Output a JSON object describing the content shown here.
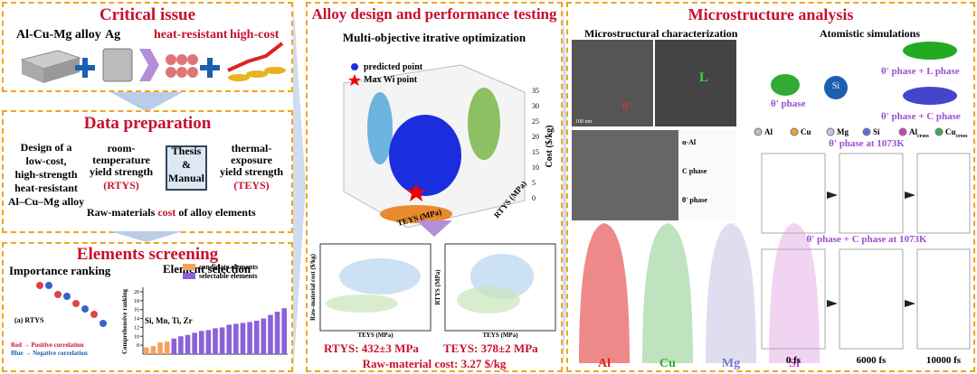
{
  "critical": {
    "title": "Critical issue",
    "alloy": "Al-Cu-Mg alloy",
    "ag": "Ag",
    "heat": "heat-resistant",
    "cost": "high-cost"
  },
  "data_prep": {
    "title": "Data preparation",
    "goal": [
      "Design of a",
      "low-cost,",
      "high-strength",
      "heat-resistant",
      "Al–Cu–Mg alloy"
    ],
    "room": [
      "room-",
      "temperature",
      "yield strength"
    ],
    "rtys": "(RTYS)",
    "thermal": [
      "thermal-",
      "exposure",
      "yield strength"
    ],
    "teys": "(TEYS)",
    "center": [
      "Thesis",
      "&",
      "Manual"
    ],
    "raw": "Raw-materials",
    "raw_cost": "cost",
    "raw_tail": "of alloy elements"
  },
  "screening": {
    "title": "Elements screening",
    "importance": "Importance ranking",
    "selection": "Element selection",
    "annotation": "Si, Mn, Ti, Zr",
    "rtys_tag": "(a) RTYS",
    "ylabel": "Comprehensive ranking",
    "legend_red": "Red → Positive correlation",
    "legend_blue": "Blue → Negative correlation",
    "bars": {
      "ylim": [
        6,
        21
      ],
      "yticks": [
        8,
        10,
        12,
        14,
        16,
        18,
        20
      ],
      "series": [
        {
          "name": "candidate elements",
          "color": "#f5a25d",
          "values": [
            7.5,
            7.8,
            8.6,
            8.8
          ]
        },
        {
          "name": "selectable elements",
          "color": "#8b62d8",
          "values": [
            9.5,
            10,
            10.3,
            10.8,
            11.2,
            11.4,
            11.8,
            12,
            12.6,
            12.8,
            13,
            13.2,
            13.5,
            14,
            14.8,
            15.5,
            16.3
          ]
        }
      ]
    }
  },
  "design": {
    "title": "Alloy design and performance testing",
    "subtitle": "Multi-objective itrative optimization",
    "legend": [
      "predicted point",
      "Max Wi point"
    ],
    "x_axis": "TEYS (MPa)",
    "y_axis": "RTYS (MPa)",
    "z_axis": "Cost ($/kg)",
    "z_ticks": [
      0,
      5,
      10,
      15,
      20,
      25,
      30,
      35
    ],
    "chart1_y": "Raw-material cost ($/kg)",
    "chart1_x": "TEYS (MPa)",
    "chart2_y": "RTYS (MPa)",
    "chart2_x": "TEYS (MPa)",
    "rtys": "RTYS: 432±3 MPa",
    "teys": "TEYS: 378±2 MPa",
    "cost": "Raw-material cost: 3.27 $/kg"
  },
  "micro": {
    "title": "Microstructure analysis",
    "characterization": "Microstructural characterization",
    "simulations": "Atomistic simulations",
    "theta": "θ'",
    "L": "L",
    "scale": "100 nm",
    "layers": [
      "α-Al",
      "C phase",
      "θ' phase"
    ],
    "apt": [
      "Al",
      "Cu",
      "Mg",
      "Si"
    ],
    "theta_phase": "θ' phase",
    "si": "Si",
    "l_phase": "θ' phase + L phase",
    "c_phase": "θ' phase + C phase",
    "atoms": [
      {
        "base": "Al",
        "sub": ""
      },
      {
        "base": "Cu",
        "sub": ""
      },
      {
        "base": "Mg",
        "sub": ""
      },
      {
        "base": "Si",
        "sub": ""
      },
      {
        "base": "Al",
        "sub": "cross"
      },
      {
        "base": "Cu",
        "sub": "cross"
      }
    ],
    "sim1": "θ' phase at 1073K",
    "sim2": "θ' phase + C phase at 1073K",
    "times": [
      "0 fs",
      "6000 fs",
      "10000 fs"
    ]
  }
}
